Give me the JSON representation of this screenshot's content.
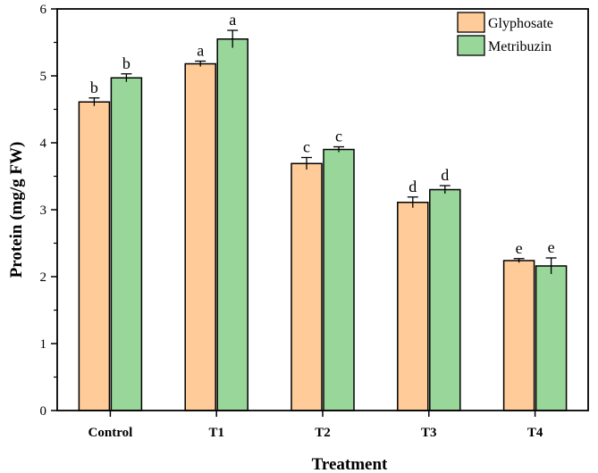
{
  "chart_data": {
    "type": "bar",
    "categories": [
      "Control",
      "T1",
      "T2",
      "T3",
      "T4"
    ],
    "series": [
      {
        "name": "Glyphosate",
        "color": "#FFCC99",
        "values": [
          4.61,
          5.18,
          3.69,
          3.11,
          2.24
        ],
        "errors": [
          0.06,
          0.04,
          0.09,
          0.08,
          0.03
        ],
        "labels": [
          "b",
          "a",
          "c",
          "d",
          "e"
        ]
      },
      {
        "name": "Metribuzin",
        "color": "#99D69A",
        "values": [
          4.97,
          5.55,
          3.9,
          3.3,
          2.16
        ],
        "errors": [
          0.06,
          0.13,
          0.04,
          0.06,
          0.12
        ],
        "labels": [
          "b",
          "a",
          "c",
          "d",
          "e"
        ]
      }
    ],
    "xlabel": "Treatment",
    "ylabel": "Protein (mg/g FW)",
    "ylim": [
      0,
      6
    ],
    "yticks": [
      "0",
      "1",
      "2",
      "3",
      "4",
      "5",
      "6"
    ],
    "grid": false,
    "legend": "top-right"
  }
}
